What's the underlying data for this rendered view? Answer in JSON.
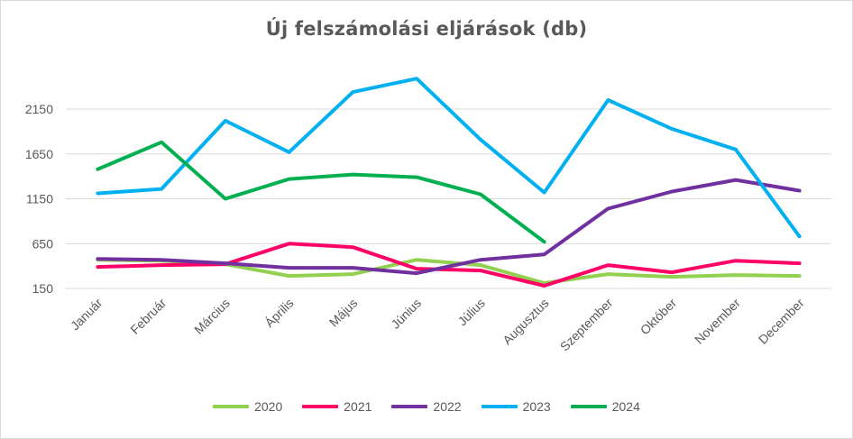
{
  "chart_data": {
    "type": "line",
    "title": "Új felszámolási eljárások (db)",
    "xlabel": "",
    "ylabel": "",
    "categories": [
      "Január",
      "Február",
      "Március",
      "Április",
      "Május",
      "Június",
      "Július",
      "Augusztus",
      "Szeptember",
      "Október",
      "November",
      "December"
    ],
    "yticks": [
      150,
      650,
      1150,
      1650,
      2150
    ],
    "ylim": [
      150,
      2150
    ],
    "grid": true,
    "legend_position": "bottom",
    "series": [
      {
        "name": "2020",
        "color": "#92d050",
        "values": [
          470,
          460,
          420,
          290,
          310,
          470,
          410,
          210,
          310,
          280,
          300,
          290
        ]
      },
      {
        "name": "2021",
        "color": "#ff0066",
        "values": [
          390,
          410,
          420,
          650,
          610,
          370,
          350,
          180,
          410,
          330,
          460,
          430
        ]
      },
      {
        "name": "2022",
        "color": "#7030a0",
        "values": [
          480,
          470,
          430,
          380,
          380,
          320,
          470,
          530,
          1040,
          1230,
          1360,
          1240
        ]
      },
      {
        "name": "2023",
        "color": "#00b0f0",
        "values": [
          1210,
          1260,
          2020,
          1670,
          2340,
          2490,
          1810,
          1220,
          2250,
          1930,
          1700,
          730
        ]
      },
      {
        "name": "2024",
        "color": "#00b050",
        "values": [
          1480,
          1780,
          1150,
          1370,
          1420,
          1390,
          1200,
          670,
          null,
          null,
          null,
          null
        ]
      }
    ]
  }
}
